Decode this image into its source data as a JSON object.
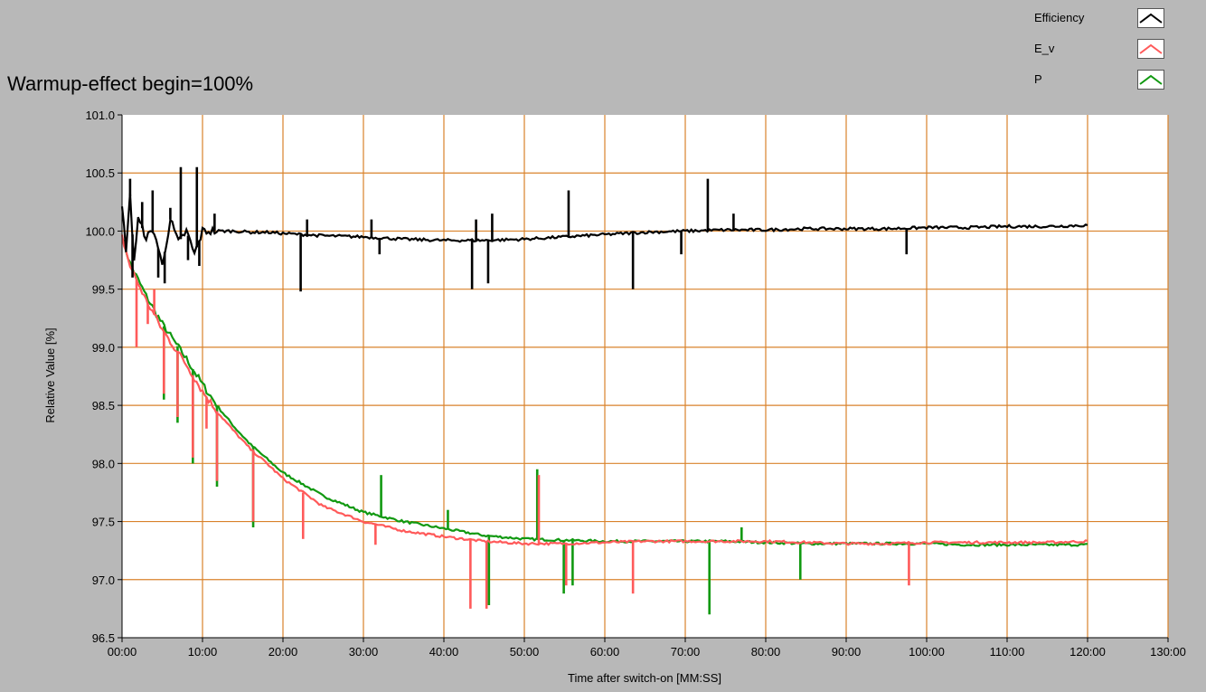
{
  "chart_data": {
    "type": "line",
    "title": "Warmup-effect begin=100%",
    "xlabel": "Time after switch-on [MM:SS]",
    "ylabel": "Relative Value [%]",
    "xlim": [
      0,
      130
    ],
    "ylim": [
      96.5,
      101.0
    ],
    "x_ticks": [
      "00:00",
      "10:00",
      "20:00",
      "30:00",
      "40:00",
      "50:00",
      "60:00",
      "70:00",
      "80:00",
      "90:00",
      "100:00",
      "110:00",
      "120:00",
      "130:00"
    ],
    "y_ticks": [
      "101.0",
      "100.5",
      "100.0",
      "99.5",
      "99.0",
      "98.5",
      "98.0",
      "97.5",
      "97.0",
      "96.5"
    ],
    "grid": true,
    "legend_position": "top-right",
    "series": [
      {
        "name": "Efficiency",
        "color": "#000000",
        "x": [
          0,
          0.5,
          1,
          1.5,
          2,
          3,
          4,
          5,
          6,
          7,
          8,
          9,
          10,
          12,
          14,
          16,
          18,
          20,
          25,
          30,
          35,
          40,
          45,
          50,
          55,
          60,
          65,
          70,
          75,
          80,
          85,
          90,
          95,
          100,
          105,
          110,
          115,
          120
        ],
        "y": [
          100.2,
          99.85,
          100.3,
          99.75,
          100.1,
          99.95,
          100.0,
          99.7,
          100.1,
          99.9,
          100.0,
          99.8,
          100.0,
          100.0,
          100.0,
          99.99,
          99.99,
          99.98,
          99.96,
          99.95,
          99.93,
          99.92,
          99.92,
          99.93,
          99.95,
          99.97,
          99.99,
          100.0,
          100.01,
          100.01,
          100.02,
          100.02,
          100.02,
          100.03,
          100.03,
          100.04,
          100.04,
          100.05
        ],
        "spikes": [
          [
            1,
            100.45
          ],
          [
            1.3,
            99.6
          ],
          [
            2.5,
            100.25
          ],
          [
            3.8,
            100.35
          ],
          [
            4.5,
            99.6
          ],
          [
            5.3,
            99.55
          ],
          [
            6,
            100.2
          ],
          [
            7.3,
            100.55
          ],
          [
            8.2,
            99.75
          ],
          [
            9.3,
            100.55
          ],
          [
            9.6,
            99.7
          ],
          [
            11.5,
            100.15
          ],
          [
            22.2,
            99.48
          ],
          [
            23,
            100.1
          ],
          [
            31,
            100.1
          ],
          [
            32,
            99.8
          ],
          [
            43.5,
            99.5
          ],
          [
            44,
            100.1
          ],
          [
            45.5,
            99.55
          ],
          [
            46,
            100.15
          ],
          [
            55.5,
            100.35
          ],
          [
            63.5,
            99.5
          ],
          [
            69.5,
            99.8
          ],
          [
            72.8,
            100.45
          ],
          [
            76,
            100.15
          ],
          [
            97.5,
            99.8
          ]
        ]
      },
      {
        "name": "E_v",
        "color": "#ff5a5a",
        "x": [
          0,
          1,
          2,
          3,
          4,
          5,
          6,
          8,
          10,
          12,
          14,
          16,
          18,
          20,
          25,
          30,
          35,
          40,
          45,
          50,
          55,
          60,
          65,
          70,
          75,
          80,
          85,
          90,
          95,
          100,
          105,
          110,
          115,
          120
        ],
        "y": [
          99.95,
          99.7,
          99.55,
          99.4,
          99.28,
          99.15,
          99.05,
          98.85,
          98.62,
          98.43,
          98.27,
          98.12,
          98.0,
          97.87,
          97.63,
          97.5,
          97.42,
          97.37,
          97.33,
          97.31,
          97.31,
          97.32,
          97.33,
          97.33,
          97.33,
          97.33,
          97.32,
          97.31,
          97.31,
          97.32,
          97.32,
          97.32,
          97.32,
          97.33
        ],
        "spikes": [
          [
            1.8,
            99.0
          ],
          [
            3.2,
            99.2
          ],
          [
            4,
            99.5
          ],
          [
            5.2,
            98.6
          ],
          [
            6.9,
            98.4
          ],
          [
            8.8,
            98.05
          ],
          [
            10.5,
            98.3
          ],
          [
            11.8,
            97.85
          ],
          [
            16.3,
            97.5
          ],
          [
            22.5,
            97.35
          ],
          [
            31.5,
            97.3
          ],
          [
            43.3,
            96.75
          ],
          [
            45.3,
            96.75
          ],
          [
            51.8,
            97.9
          ],
          [
            55.2,
            96.95
          ],
          [
            63.5,
            96.88
          ],
          [
            97.8,
            96.95
          ]
        ]
      },
      {
        "name": "P",
        "color": "#119911",
        "x": [
          0,
          1,
          2,
          3,
          4,
          5,
          6,
          8,
          10,
          12,
          14,
          16,
          18,
          20,
          25,
          30,
          35,
          40,
          45,
          50,
          55,
          60,
          65,
          70,
          75,
          80,
          85,
          90,
          95,
          100,
          105,
          110,
          115,
          120
        ],
        "y": [
          99.95,
          99.72,
          99.58,
          99.44,
          99.32,
          99.2,
          99.1,
          98.9,
          98.68,
          98.48,
          98.31,
          98.16,
          98.04,
          97.92,
          97.72,
          97.58,
          97.5,
          97.44,
          97.38,
          97.35,
          97.34,
          97.33,
          97.33,
          97.33,
          97.33,
          97.32,
          97.31,
          97.31,
          97.31,
          97.31,
          97.3,
          97.3,
          97.3,
          97.3
        ],
        "spikes": [
          [
            5.2,
            98.55
          ],
          [
            6.9,
            98.35
          ],
          [
            8.8,
            98.0
          ],
          [
            11.8,
            97.8
          ],
          [
            16.3,
            97.45
          ],
          [
            32.2,
            97.9
          ],
          [
            40.5,
            97.6
          ],
          [
            45.6,
            96.78
          ],
          [
            51.6,
            97.95
          ],
          [
            54.9,
            96.88
          ],
          [
            56,
            96.95
          ],
          [
            73,
            96.7
          ],
          [
            77,
            97.45
          ],
          [
            84.3,
            97.0
          ]
        ]
      }
    ]
  }
}
